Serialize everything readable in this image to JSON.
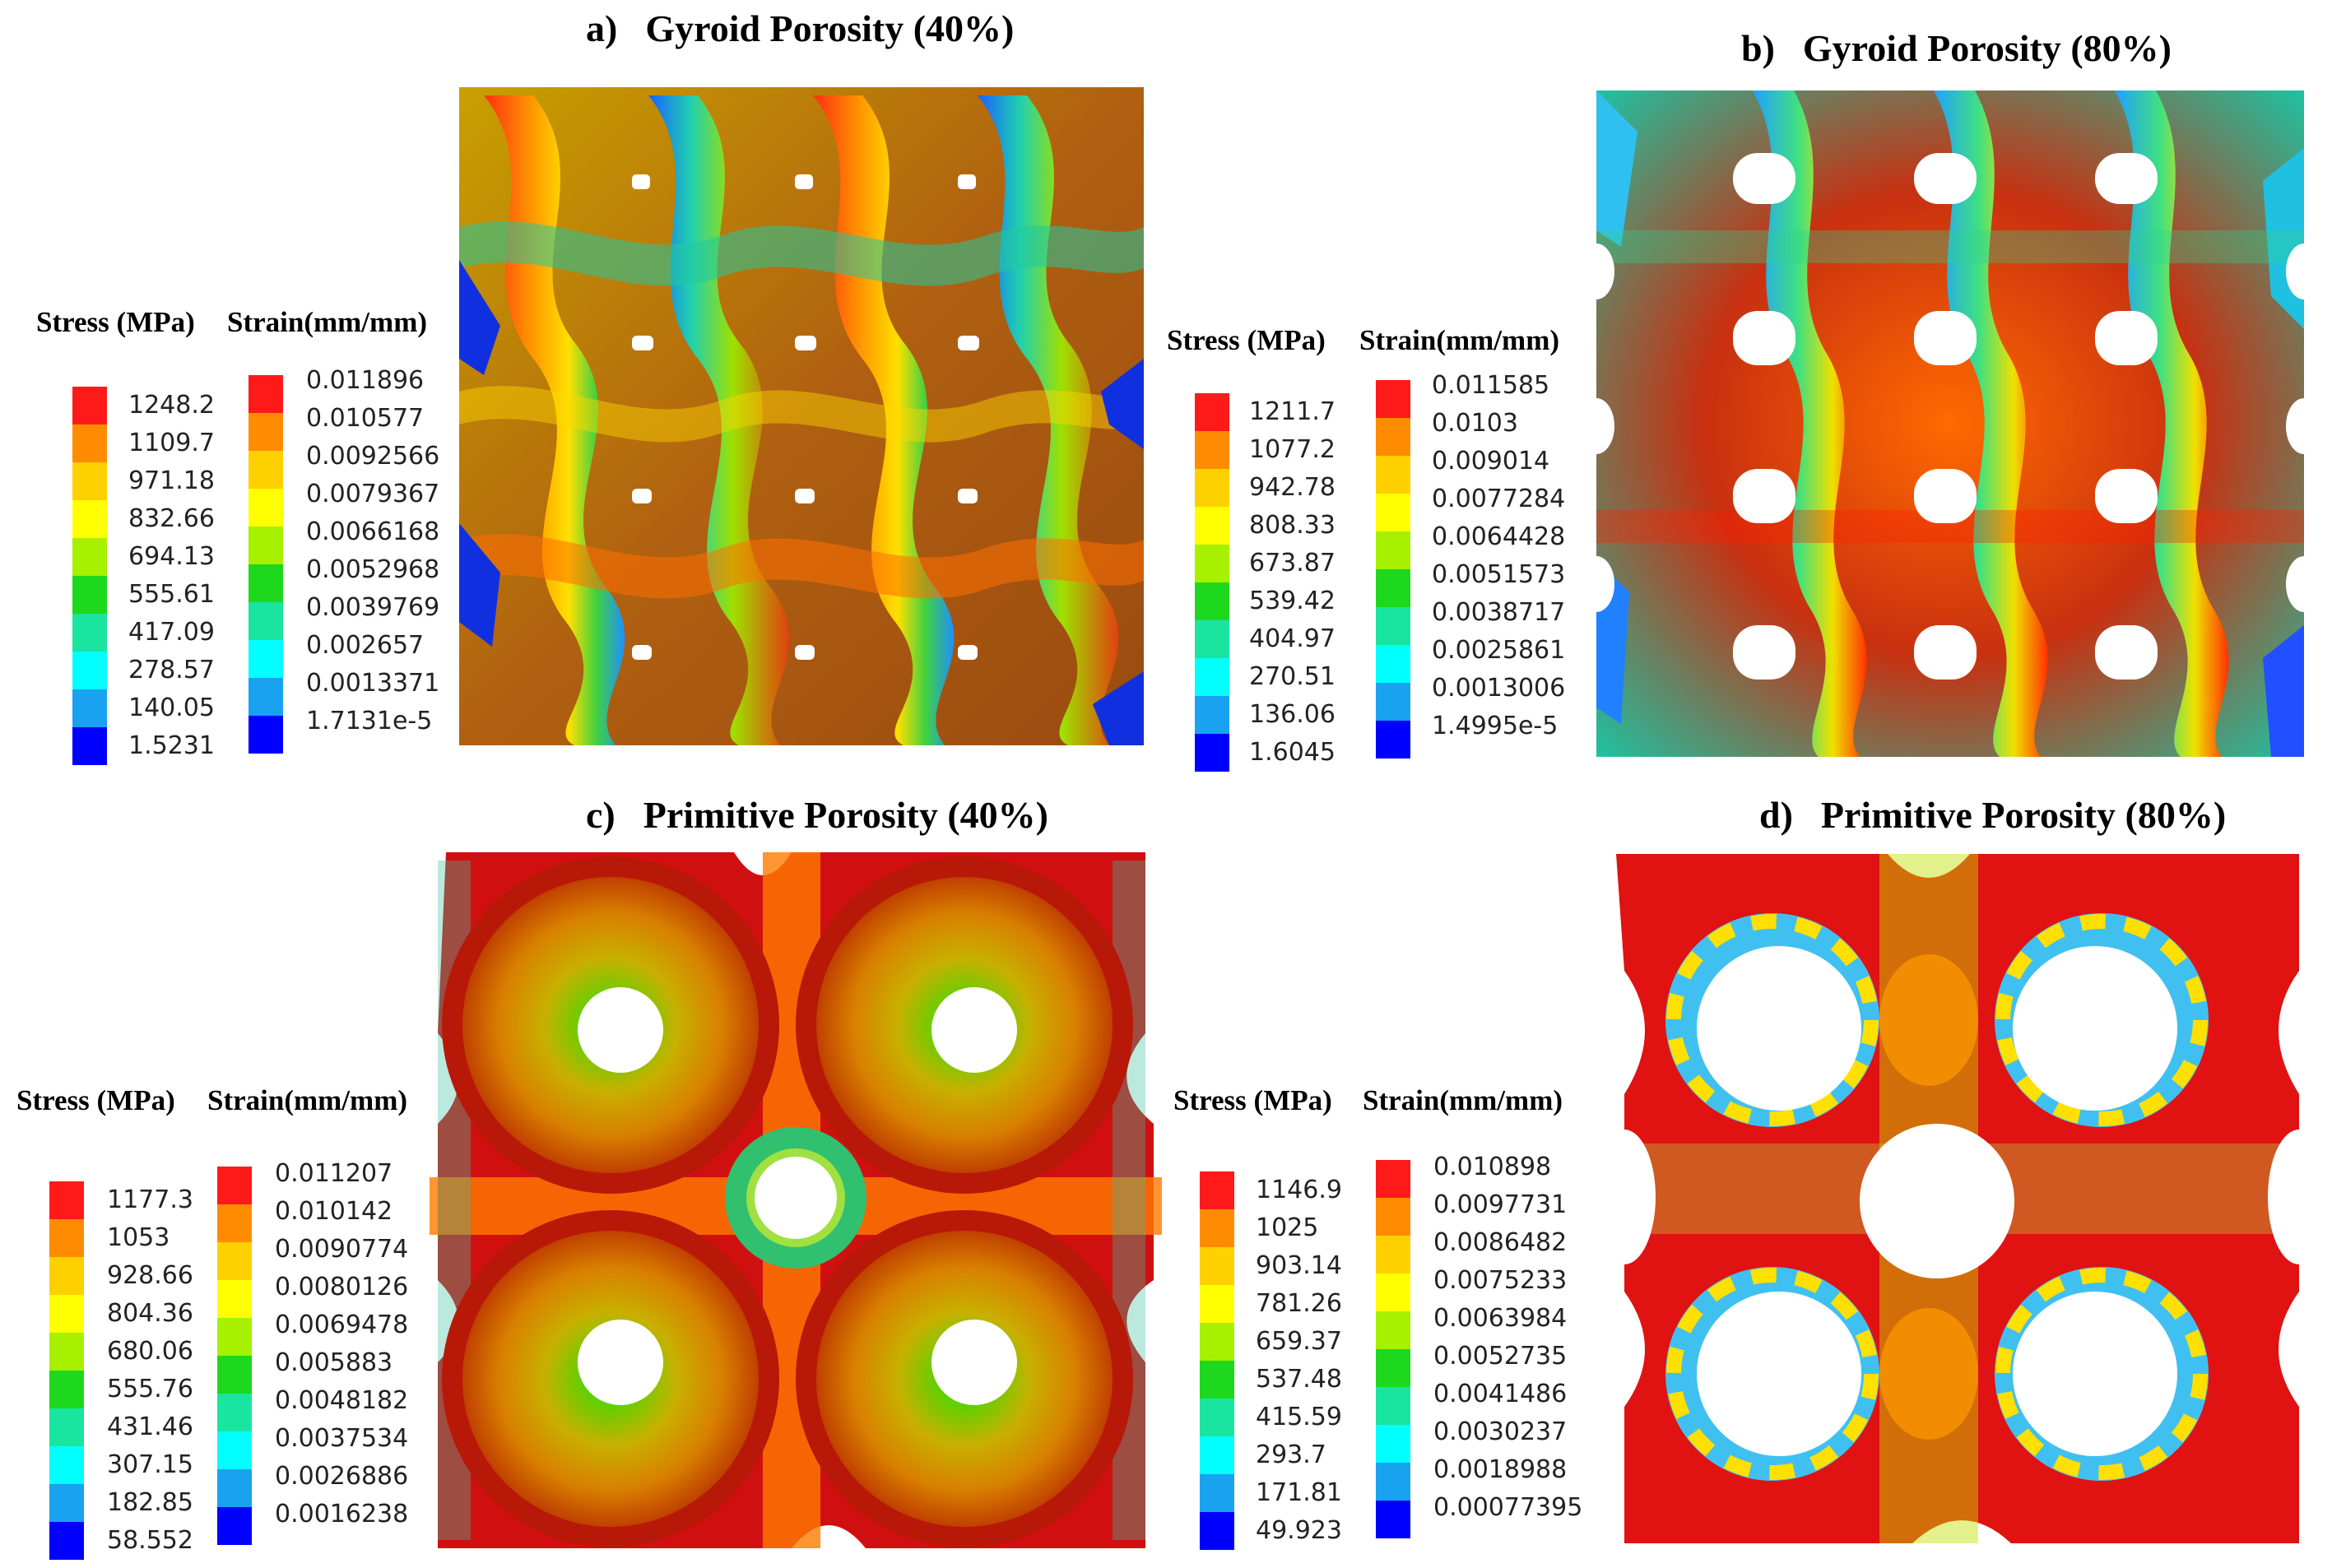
{
  "colors": {
    "scale": [
      "#ff1a1a",
      "#ff8c00",
      "#ffd000",
      "#ffff00",
      "#a6f000",
      "#1ed81e",
      "#19e5a0",
      "#00ffff",
      "#19a2f0",
      "#0000ff"
    ],
    "background": "#ffffff"
  },
  "panels": [
    {
      "label": "a)",
      "title": "Gyroid Porosity (40%)",
      "geometry": "gyroid",
      "porosity": 40,
      "stress_header": "Stress (MPa)",
      "strain_header": "Strain(mm/mm)",
      "stress_values": [
        "1248.2",
        "1109.7",
        "971.18",
        "832.66",
        "694.13",
        "555.61",
        "417.09",
        "278.57",
        "140.05",
        "1.5231"
      ],
      "strain_values": [
        "0.011896",
        "0.010577",
        "0.0092566",
        "0.0079367",
        "0.0066168",
        "0.0052968",
        "0.0039769",
        "0.002657",
        "0.0013371",
        "1.7131e-5"
      ]
    },
    {
      "label": "b)",
      "title": "Gyroid Porosity (80%)",
      "geometry": "gyroid",
      "porosity": 80,
      "stress_header": "Stress (MPa)",
      "strain_header": "Strain(mm/mm)",
      "stress_values": [
        "1211.7",
        "1077.2",
        "942.78",
        "808.33",
        "673.87",
        "539.42",
        "404.97",
        "270.51",
        "136.06",
        "1.6045"
      ],
      "strain_values": [
        "0.011585",
        "0.0103",
        "0.009014",
        "0.0077284",
        "0.0064428",
        "0.0051573",
        "0.0038717",
        "0.0025861",
        "0.0013006",
        "1.4995e-5"
      ]
    },
    {
      "label": "c)",
      "title": "Primitive Porosity (40%)",
      "geometry": "primitive",
      "porosity": 40,
      "stress_header": "Stress (MPa)",
      "strain_header": "Strain(mm/mm)",
      "stress_values": [
        "1177.3",
        "1053",
        "928.66",
        "804.36",
        "680.06",
        "555.76",
        "431.46",
        "307.15",
        "182.85",
        "58.552"
      ],
      "strain_values": [
        "0.011207",
        "0.010142",
        "0.0090774",
        "0.0080126",
        "0.0069478",
        "0.005883",
        "0.0048182",
        "0.0037534",
        "0.0026886",
        "0.0016238"
      ]
    },
    {
      "label": "d)",
      "title": "Primitive Porosity (80%)",
      "geometry": "primitive",
      "porosity": 80,
      "stress_header": "Stress (MPa)",
      "strain_header": "Strain(mm/mm)",
      "stress_values": [
        "1146.9",
        "1025",
        "903.14",
        "781.26",
        "659.37",
        "537.48",
        "415.59",
        "293.7",
        "171.81",
        "49.923"
      ],
      "strain_values": [
        "0.010898",
        "0.0097731",
        "0.0086482",
        "0.0075233",
        "0.0063984",
        "0.0052735",
        "0.0041486",
        "0.0030237",
        "0.0018988",
        "0.00077395"
      ]
    }
  ]
}
